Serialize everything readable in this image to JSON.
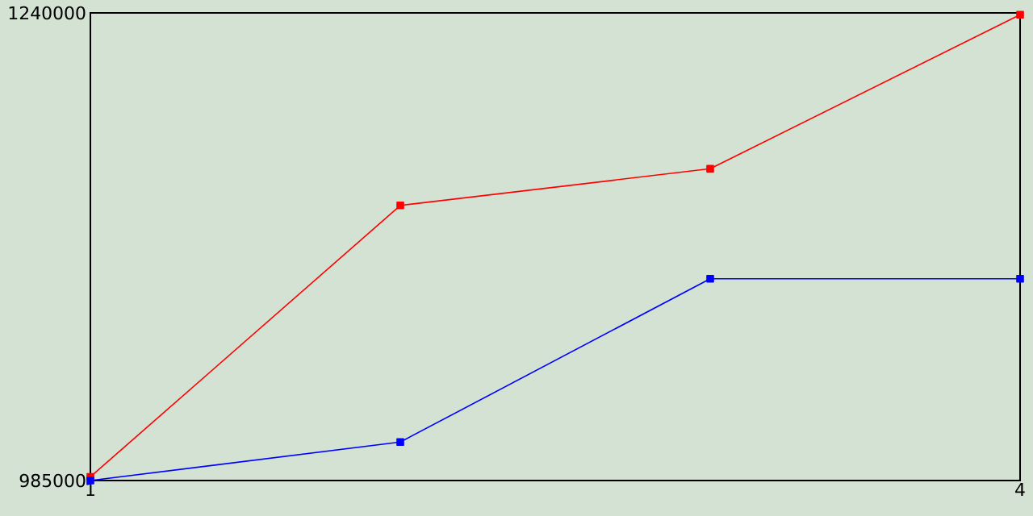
{
  "chart_data": {
    "type": "line",
    "x": [
      1,
      2,
      3,
      4
    ],
    "xlim": [
      1,
      4
    ],
    "xticks": [
      1,
      4
    ],
    "ylim": [
      985000,
      1240000
    ],
    "yticks": [
      985000,
      1240000
    ],
    "series": [
      {
        "color": "#ff0000",
        "values": [
          987000,
          1135000,
          1155000,
          1239000
        ]
      },
      {
        "color": "#0000ff",
        "values": [
          985000,
          1006000,
          1095000,
          1095000
        ]
      }
    ],
    "marker": "square",
    "line_style": "solid"
  }
}
